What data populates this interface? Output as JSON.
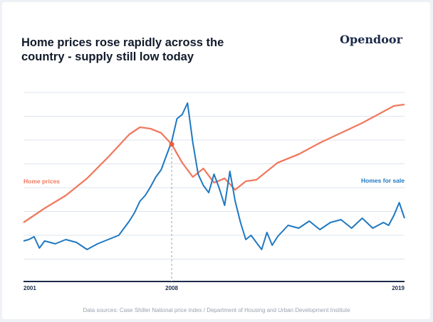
{
  "header": {
    "title": "Home prices rose rapidly across the country - supply still low today",
    "brand": "Opendoor"
  },
  "footer": {
    "source": "Data sources: Case Shiller National price index / Department of Housing and Urban Development Institute"
  },
  "colors": {
    "home_prices": "#f07a5f",
    "homes_for_sale": "#1f78c1",
    "axis": "#1d2b4a",
    "grid": "#dde3ec"
  },
  "chart_data": {
    "type": "line",
    "title": "Home prices rose rapidly across the country - supply still low today",
    "xlabel": "",
    "ylabel": "",
    "xlim": [
      2001,
      2019
    ],
    "x_ticks": [
      "2001",
      "2008",
      "2019"
    ],
    "highlight_year": 2008,
    "grid": "horizontal",
    "y_axis_labels": "none",
    "series": [
      {
        "name": "Home prices",
        "color": "#f07a5f",
        "x": [
          2001,
          2002,
          2003,
          2004,
          2005,
          2006,
          2006.5,
          2007,
          2007.5,
          2008,
          2008.5,
          2009,
          2009.5,
          2010,
          2010.5,
          2011,
          2011.5,
          2012,
          2012.5,
          2013,
          2014,
          2015,
          2016,
          2017,
          2018,
          2018.5,
          2019
        ],
        "y": [
          0.26,
          0.36,
          0.45,
          0.57,
          0.72,
          0.88,
          0.93,
          0.92,
          0.89,
          0.81,
          0.68,
          0.58,
          0.64,
          0.54,
          0.57,
          0.49,
          0.55,
          0.56,
          0.62,
          0.68,
          0.74,
          0.82,
          0.89,
          0.96,
          1.04,
          1.08,
          1.09
        ]
      },
      {
        "name": "Homes for sale",
        "color": "#1f78c1",
        "x": [
          2001,
          2001.25,
          2001.5,
          2001.75,
          2002,
          2002.5,
          2003,
          2003.5,
          2004,
          2004.5,
          2005,
          2005.5,
          2006,
          2006.25,
          2006.5,
          2006.75,
          2007,
          2007.25,
          2007.5,
          2007.75,
          2008,
          2008.25,
          2008.5,
          2008.75,
          2009,
          2009.25,
          2009.5,
          2009.75,
          2010,
          2010.25,
          2010.5,
          2010.75,
          2011,
          2011.25,
          2011.5,
          2011.75,
          2012,
          2012.25,
          2012.5,
          2012.75,
          2013,
          2013.5,
          2014,
          2014.5,
          2015,
          2015.5,
          2016,
          2016.5,
          2017,
          2017.5,
          2018,
          2018.25,
          2018.5,
          2018.75,
          2019
        ],
        "y": [
          0.13,
          0.14,
          0.16,
          0.08,
          0.13,
          0.11,
          0.14,
          0.12,
          0.07,
          0.11,
          0.14,
          0.17,
          0.27,
          0.33,
          0.41,
          0.45,
          0.51,
          0.58,
          0.63,
          0.73,
          0.83,
          0.99,
          1.02,
          1.1,
          0.82,
          0.6,
          0.52,
          0.47,
          0.6,
          0.5,
          0.38,
          0.62,
          0.41,
          0.26,
          0.14,
          0.17,
          0.12,
          0.07,
          0.19,
          0.1,
          0.16,
          0.24,
          0.22,
          0.27,
          0.21,
          0.26,
          0.28,
          0.22,
          0.29,
          0.22,
          0.26,
          0.24,
          0.31,
          0.4,
          0.29
        ]
      }
    ]
  }
}
